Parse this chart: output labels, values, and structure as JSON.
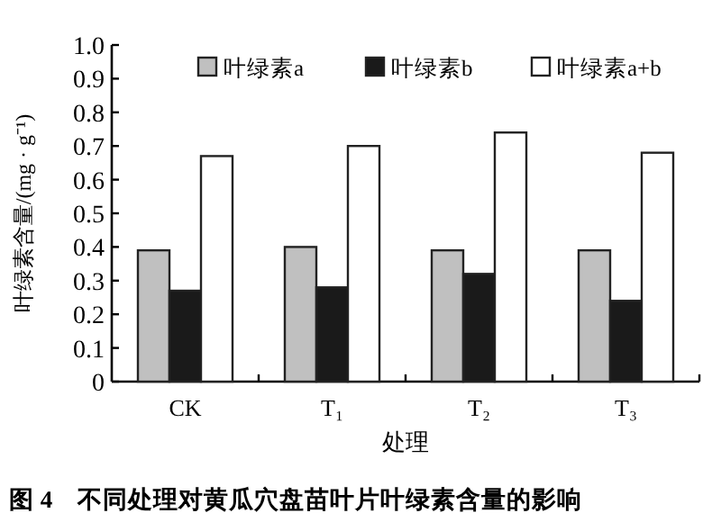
{
  "chart_data": {
    "type": "bar",
    "xlabel": "处理",
    "ylabel": "叶绿素含量/(mg · g⁻¹)",
    "categories": [
      "CK",
      "T₁",
      "T₂",
      "T₃"
    ],
    "series": [
      {
        "name": "叶绿素a",
        "color": "#c0c0c0",
        "values": [
          0.39,
          0.4,
          0.39,
          0.39
        ]
      },
      {
        "name": "叶绿素b",
        "color": "#1a1a1a",
        "values": [
          0.27,
          0.28,
          0.32,
          0.24
        ]
      },
      {
        "name": "叶绿素a+b",
        "color": "#ffffff",
        "values": [
          0.67,
          0.7,
          0.74,
          0.68
        ]
      }
    ],
    "ylim": [
      0,
      1.0
    ],
    "yticks": [
      0,
      0.1,
      0.2,
      0.3,
      0.4,
      0.5,
      0.6,
      0.7,
      0.8,
      0.9,
      {
        "value": 1.0,
        "label": "1.0"
      }
    ],
    "legend": "top",
    "grid": false,
    "annotations": [
      "图 4　不同处理对黄瓜穴盘苗叶片叶绿素含量的影响"
    ]
  }
}
